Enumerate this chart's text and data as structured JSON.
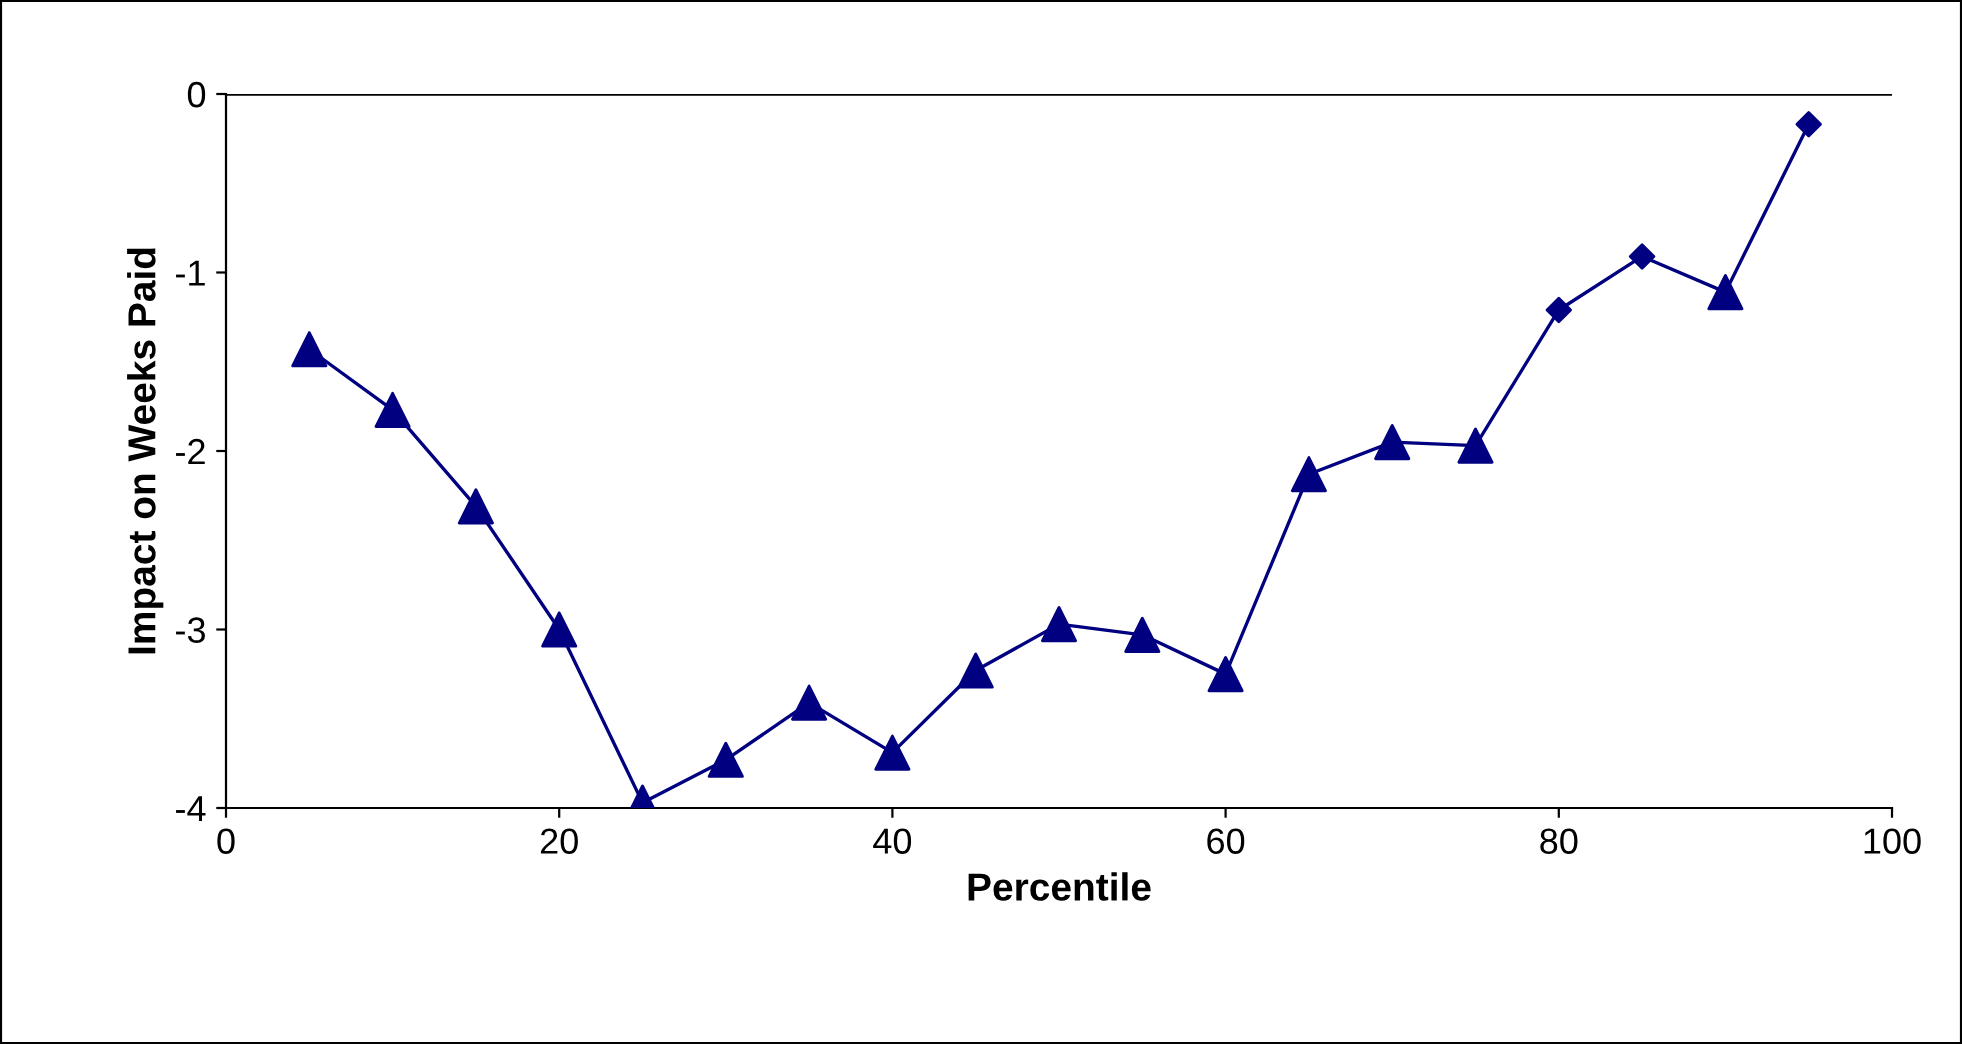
{
  "chart_data": {
    "type": "line",
    "xlabel": "Percentile",
    "ylabel": "Impact on Weeks Paid",
    "x": [
      5,
      10,
      15,
      20,
      25,
      30,
      35,
      40,
      45,
      50,
      55,
      60,
      65,
      70,
      75,
      80,
      85,
      90,
      95
    ],
    "series": [
      {
        "color": "#000080",
        "marker": "none",
        "values": [
          -1.43,
          -1.77,
          -2.31,
          -3.0,
          -3.97,
          -3.73,
          -3.41,
          -3.69,
          -3.23,
          -2.97,
          -3.03,
          -3.25,
          -2.13,
          -1.95,
          -1.97,
          -1.21,
          -0.91,
          -1.11,
          -0.17
        ]
      },
      {
        "type": "scatter",
        "color": "#000080",
        "marker": "triangle",
        "values": [
          -1.43,
          -1.77,
          -2.31,
          -3.0,
          -3.97,
          -3.73,
          -3.41,
          -3.69,
          -3.23,
          -2.97,
          -3.03,
          -3.25,
          -2.13,
          -1.95,
          -1.97,
          null,
          null,
          -1.11,
          null
        ]
      },
      {
        "type": "scatter",
        "color": "#000080",
        "marker": "diamond",
        "values": [
          null,
          null,
          null,
          null,
          null,
          null,
          null,
          null,
          null,
          null,
          null,
          null,
          null,
          null,
          null,
          -1.21,
          -0.91,
          null,
          -0.17
        ]
      }
    ],
    "xlim": [
      0,
      100
    ],
    "xticks": [
      0,
      20,
      40,
      60,
      80,
      100
    ],
    "ylim": [
      -4,
      0
    ],
    "yticks": [
      -4,
      -3,
      -2,
      -1,
      0
    ],
    "ref_lines": [
      {
        "axis": "y",
        "value": 0,
        "color": "#000000"
      }
    ],
    "grid": false,
    "legend": false
  }
}
